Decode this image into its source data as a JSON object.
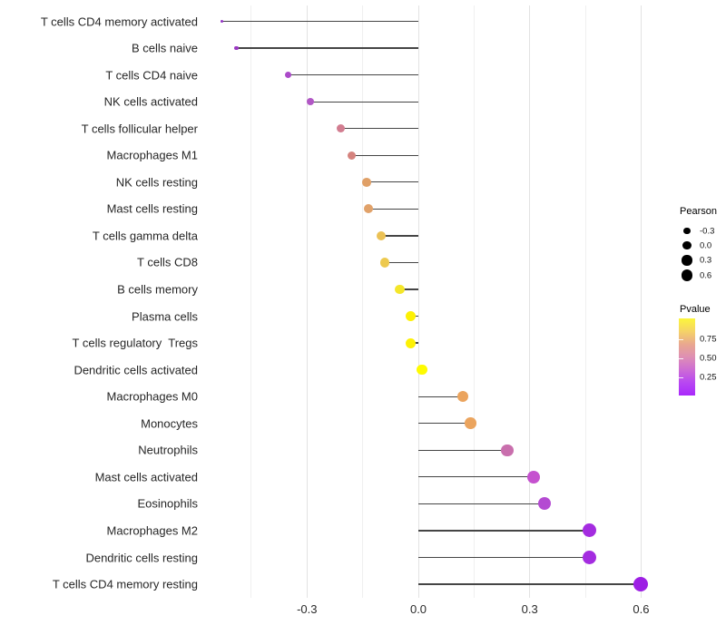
{
  "chart_data": {
    "type": "lollipop",
    "title": "",
    "xlabel": "",
    "ylabel": "",
    "x_tick_labels": [
      "-0.3",
      "0.0",
      "0.3",
      "0.6"
    ],
    "x_tick_values": [
      -0.3,
      0.0,
      0.3,
      0.6
    ],
    "x_minor_grid_values": [
      -0.45,
      -0.15,
      0.15,
      0.45
    ],
    "xlim": [
      -0.59,
      0.66
    ],
    "grid": "vertical-only",
    "legend_position": "right",
    "rows": [
      {
        "label": "T cells CD4 memory activated",
        "pearson": -0.53,
        "color": "#9333c6"
      },
      {
        "label": "B cells naive",
        "pearson": -0.49,
        "color": "#9a38c2"
      },
      {
        "label": "T cells CD4 naive",
        "pearson": -0.35,
        "color": "#ab4ac9"
      },
      {
        "label": "NK cells activated",
        "pearson": -0.29,
        "color": "#b157c5"
      },
      {
        "label": "T cells follicular helper",
        "pearson": -0.21,
        "color": "#d27d90"
      },
      {
        "label": "Macrophages M1",
        "pearson": -0.18,
        "color": "#d5837e"
      },
      {
        "label": "NK cells resting",
        "pearson": -0.14,
        "color": "#e0a067"
      },
      {
        "label": "Mast cells resting",
        "pearson": -0.135,
        "color": "#e1a26a"
      },
      {
        "label": "T cells gamma delta",
        "pearson": -0.1,
        "color": "#ebc155"
      },
      {
        "label": "T cells CD8",
        "pearson": -0.09,
        "color": "#edc94e"
      },
      {
        "label": "B cells memory",
        "pearson": -0.05,
        "color": "#f4e62a"
      },
      {
        "label": "Plasma cells",
        "pearson": -0.02,
        "color": "#fdf104"
      },
      {
        "label": "T cells regulatory  Tregs",
        "pearson": -0.02,
        "color": "#fdf104"
      },
      {
        "label": "Dendritic cells activated",
        "pearson": 0.01,
        "color": "#fefb00"
      },
      {
        "label": "Macrophages M0",
        "pearson": 0.12,
        "color": "#eba45e"
      },
      {
        "label": "Monocytes",
        "pearson": 0.14,
        "color": "#eba45e"
      },
      {
        "label": "Neutrophils",
        "pearson": 0.24,
        "color": "#c96fad"
      },
      {
        "label": "Mast cells activated",
        "pearson": 0.31,
        "color": "#c551cf"
      },
      {
        "label": "Eosinophils",
        "pearson": 0.34,
        "color": "#b44ad2"
      },
      {
        "label": "Macrophages M2",
        "pearson": 0.46,
        "color": "#a42ce0"
      },
      {
        "label": "Dendritic cells resting",
        "pearson": 0.46,
        "color": "#a42ce0"
      },
      {
        "label": "T cells CD4 memory resting",
        "pearson": 0.6,
        "color": "#9d1fe4"
      }
    ],
    "legend_pearson": {
      "title": "Pearson",
      "entries": [
        "-0.3",
        "0.0",
        "0.3",
        "0.6"
      ],
      "dot_color": "#000000"
    },
    "legend_pvalue": {
      "title": "Pvalue",
      "ticks": [
        "0.75",
        "0.50",
        "0.25"
      ],
      "gradient_colors": [
        "#fcf63b",
        "#f5d367",
        "#e9a88f",
        "#de8fb4",
        "#cd6cd4",
        "#b847f2",
        "#a929fb"
      ]
    }
  }
}
